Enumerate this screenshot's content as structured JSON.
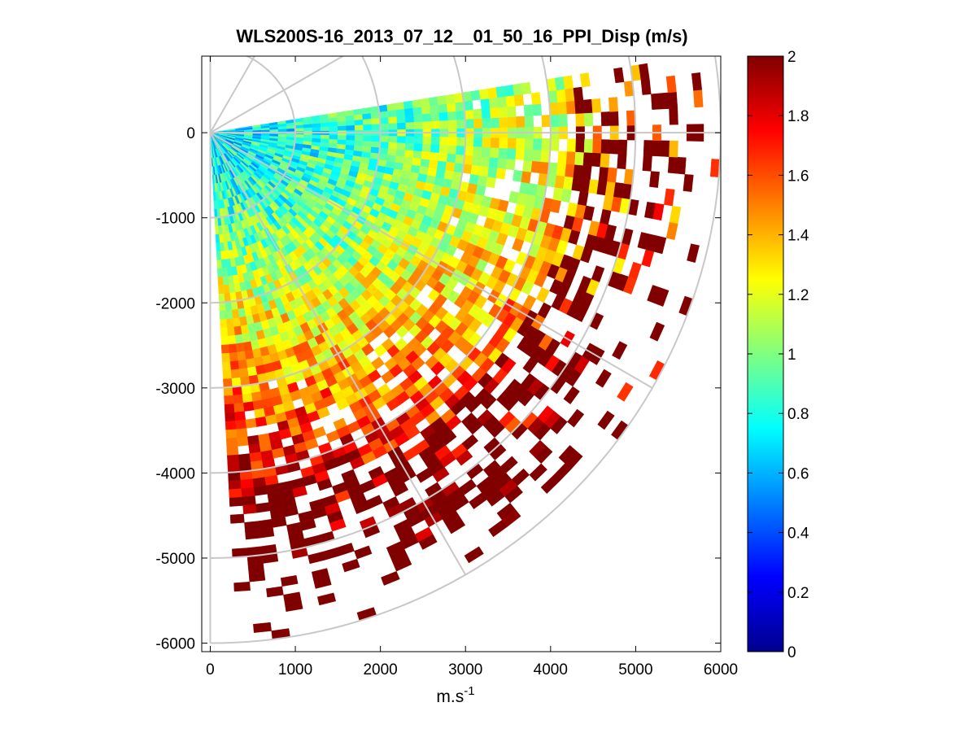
{
  "figure": {
    "title": "WLS200S-16_2013_07_12__01_50_16_PPI_Disp (m/s)",
    "background": "#ffffff"
  },
  "chart_data": {
    "type": "heatmap",
    "subtype": "ppi-polar-sector",
    "title": "WLS200S-16_2013_07_12__01_50_16_PPI_Disp (m/s)",
    "xlabel_main": "m.s",
    "xlabel_sup": "-1",
    "ylabel": "",
    "xlim": [
      -100,
      6000
    ],
    "ylim": [
      -6100,
      900
    ],
    "xticks": [
      0,
      1000,
      2000,
      3000,
      4000,
      5000,
      6000
    ],
    "xtick_labels": [
      "0",
      "1000",
      "2000",
      "3000",
      "4000",
      "5000",
      "6000"
    ],
    "yticks": [
      0,
      -1000,
      -2000,
      -3000,
      -4000,
      -5000,
      -6000
    ],
    "ytick_labels": [
      "0",
      "-1000",
      "-2000",
      "-3000",
      "-4000",
      "-5000",
      "-6000"
    ],
    "polar_grid": {
      "ring_radii": [
        1000,
        2000,
        3000,
        4000,
        5000,
        6000
      ],
      "spoke_angles_deg": [
        90,
        60,
        30,
        0,
        -30,
        -60,
        -90
      ],
      "color": "#c8c8c8"
    },
    "sector": {
      "azimuth_min_deg": -87,
      "azimuth_max_deg": 9,
      "range_min": 0,
      "range_max": 6000,
      "range_gate": 100,
      "angular_bins": 48
    },
    "colorbar": {
      "colormap": "jet",
      "clim": [
        0,
        2
      ],
      "ticks": [
        0,
        0.2,
        0.4,
        0.6,
        0.8,
        1,
        1.2,
        1.4,
        1.6,
        1.8,
        2
      ],
      "tick_labels": [
        "0",
        "0.2",
        "0.4",
        "0.6",
        "0.8",
        "1",
        "1.2",
        "1.4",
        "1.6",
        "1.8",
        "2"
      ]
    },
    "value_trend": {
      "description": "dispersion increases with range and toward southern azimuths",
      "near_range_value": 0.7,
      "far_range_value": 2.0,
      "saturation_value": 2.0
    }
  }
}
